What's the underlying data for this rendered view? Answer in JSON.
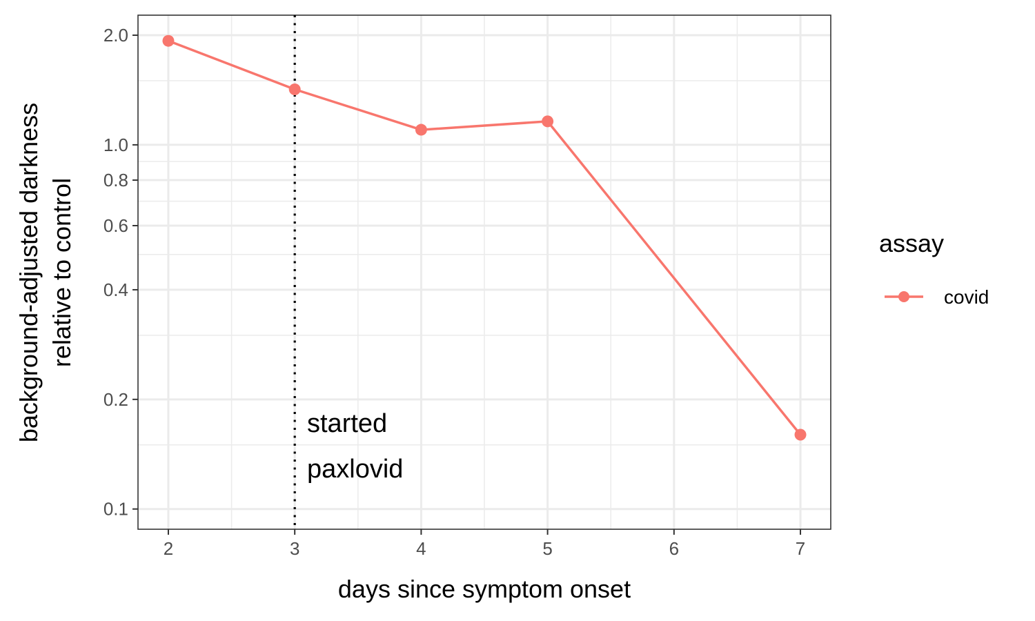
{
  "chart_data": {
    "type": "line",
    "xlabel": "days since symptom onset",
    "ylabel_lines": [
      "background-adjusted darkness",
      "relative to control"
    ],
    "x_ticks": [
      2,
      3,
      4,
      5,
      6,
      7
    ],
    "x_tick_labels": [
      "2",
      "3",
      "4",
      "5",
      "6",
      "7"
    ],
    "xlim": [
      1.76,
      7.24
    ],
    "y_scale": "log",
    "y_ticks": [
      0.1,
      0.2,
      0.4,
      0.6,
      0.8,
      1.0,
      2.0
    ],
    "y_tick_labels": [
      "0.1",
      "0.2",
      "0.4",
      "0.6",
      "0.8",
      "1.0",
      "2.0"
    ],
    "y_minor_grid": [
      0.15,
      0.3,
      0.5,
      0.7,
      0.9,
      1.5
    ],
    "ylim": [
      0.088,
      2.27
    ],
    "grid": true,
    "legend": {
      "title": "assay",
      "position": "right"
    },
    "series": [
      {
        "name": "covid",
        "color": "#F8766D",
        "x": [
          2,
          3,
          4,
          5,
          7
        ],
        "y": [
          1.93,
          1.42,
          1.1,
          1.16,
          0.16
        ]
      }
    ],
    "vline": {
      "x": 3,
      "style": "dotted",
      "color": "#000000"
    },
    "annotation": {
      "lines": [
        "started",
        "paxlovid"
      ]
    }
  }
}
